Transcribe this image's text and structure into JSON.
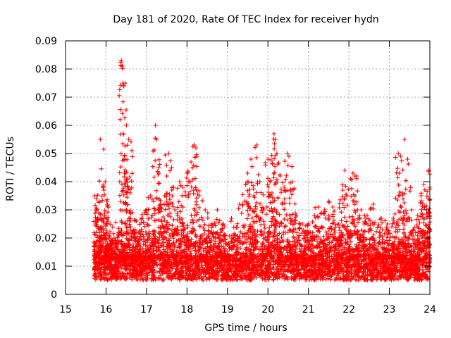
{
  "chart_data": {
    "type": "scatter",
    "title": "Day 181 of 2020, Rate Of TEC Index for receiver hydn",
    "xlabel": "GPS time / hours",
    "ylabel": "ROTI / TECUs",
    "xlim": [
      15,
      24
    ],
    "ylim": [
      0,
      0.09
    ],
    "x_ticks": [
      "15",
      "16",
      "17",
      "18",
      "19",
      "20",
      "21",
      "22",
      "23",
      "24"
    ],
    "y_ticks": [
      "0",
      "0.01",
      "0.02",
      "0.03",
      "0.04",
      "0.05",
      "0.06",
      "0.07",
      "0.08",
      "0.09"
    ],
    "grid": true,
    "marker": "+",
    "color": "#ff0000",
    "series": [
      {
        "name": "ROTI",
        "summary": "dense band mostly between 0.005 and 0.02 TECU/s from 15.7 h to 24.0 h with sparse spikes",
        "points": [
          [
            15.72,
            0.035
          ],
          [
            15.76,
            0.034
          ],
          [
            15.82,
            0.029
          ],
          [
            15.86,
            0.055
          ],
          [
            15.9,
            0.024
          ],
          [
            15.95,
            0.037
          ],
          [
            15.98,
            0.04
          ],
          [
            16.02,
            0.033
          ],
          [
            16.05,
            0.026
          ],
          [
            16.1,
            0.018
          ],
          [
            16.2,
            0.02
          ],
          [
            16.3,
            0.022
          ],
          [
            16.38,
            0.083
          ],
          [
            16.4,
            0.081
          ],
          [
            16.42,
            0.075
          ],
          [
            16.43,
            0.057
          ],
          [
            16.45,
            0.048
          ],
          [
            16.48,
            0.043
          ],
          [
            16.52,
            0.041
          ],
          [
            16.56,
            0.055
          ],
          [
            16.6,
            0.036
          ],
          [
            16.65,
            0.029
          ],
          [
            16.75,
            0.026
          ],
          [
            16.9,
            0.027
          ],
          [
            17.0,
            0.03
          ],
          [
            17.1,
            0.035
          ],
          [
            17.22,
            0.06
          ],
          [
            17.25,
            0.055
          ],
          [
            17.3,
            0.045
          ],
          [
            17.35,
            0.032
          ],
          [
            17.45,
            0.035
          ],
          [
            17.5,
            0.042
          ],
          [
            17.55,
            0.05
          ],
          [
            17.62,
            0.045
          ],
          [
            17.7,
            0.03
          ],
          [
            17.82,
            0.04
          ],
          [
            17.9,
            0.038
          ],
          [
            18.0,
            0.043
          ],
          [
            18.1,
            0.047
          ],
          [
            18.18,
            0.053
          ],
          [
            18.22,
            0.052
          ],
          [
            18.3,
            0.035
          ],
          [
            18.45,
            0.03
          ],
          [
            18.6,
            0.025
          ],
          [
            18.75,
            0.03
          ],
          [
            18.9,
            0.025
          ],
          [
            19.1,
            0.027
          ],
          [
            19.3,
            0.032
          ],
          [
            19.45,
            0.039
          ],
          [
            19.5,
            0.043
          ],
          [
            19.58,
            0.048
          ],
          [
            19.65,
            0.035
          ],
          [
            19.72,
            0.053
          ],
          [
            19.8,
            0.04
          ],
          [
            19.9,
            0.03
          ],
          [
            20.0,
            0.048
          ],
          [
            20.05,
            0.04
          ],
          [
            20.1,
            0.036
          ],
          [
            20.15,
            0.057
          ],
          [
            20.18,
            0.055
          ],
          [
            20.22,
            0.05
          ],
          [
            20.3,
            0.042
          ],
          [
            20.4,
            0.038
          ],
          [
            20.48,
            0.05
          ],
          [
            20.52,
            0.049
          ],
          [
            20.6,
            0.04
          ],
          [
            20.7,
            0.028
          ],
          [
            20.85,
            0.025
          ],
          [
            21.0,
            0.025
          ],
          [
            21.15,
            0.028
          ],
          [
            21.25,
            0.031
          ],
          [
            21.4,
            0.03
          ],
          [
            21.5,
            0.033
          ],
          [
            21.6,
            0.031
          ],
          [
            21.75,
            0.025
          ],
          [
            21.85,
            0.037
          ],
          [
            21.9,
            0.044
          ],
          [
            21.95,
            0.035
          ],
          [
            22.1,
            0.043
          ],
          [
            22.15,
            0.042
          ],
          [
            22.3,
            0.03
          ],
          [
            22.45,
            0.028
          ],
          [
            22.6,
            0.032
          ],
          [
            22.8,
            0.027
          ],
          [
            22.95,
            0.025
          ],
          [
            23.1,
            0.027
          ],
          [
            23.22,
            0.05
          ],
          [
            23.28,
            0.049
          ],
          [
            23.32,
            0.036
          ],
          [
            23.38,
            0.055
          ],
          [
            23.45,
            0.048
          ],
          [
            23.55,
            0.03
          ],
          [
            23.7,
            0.028
          ],
          [
            23.78,
            0.035
          ],
          [
            23.85,
            0.039
          ],
          [
            23.92,
            0.03
          ],
          [
            23.97,
            0.044
          ],
          [
            24.0,
            0.038
          ]
        ]
      }
    ]
  }
}
